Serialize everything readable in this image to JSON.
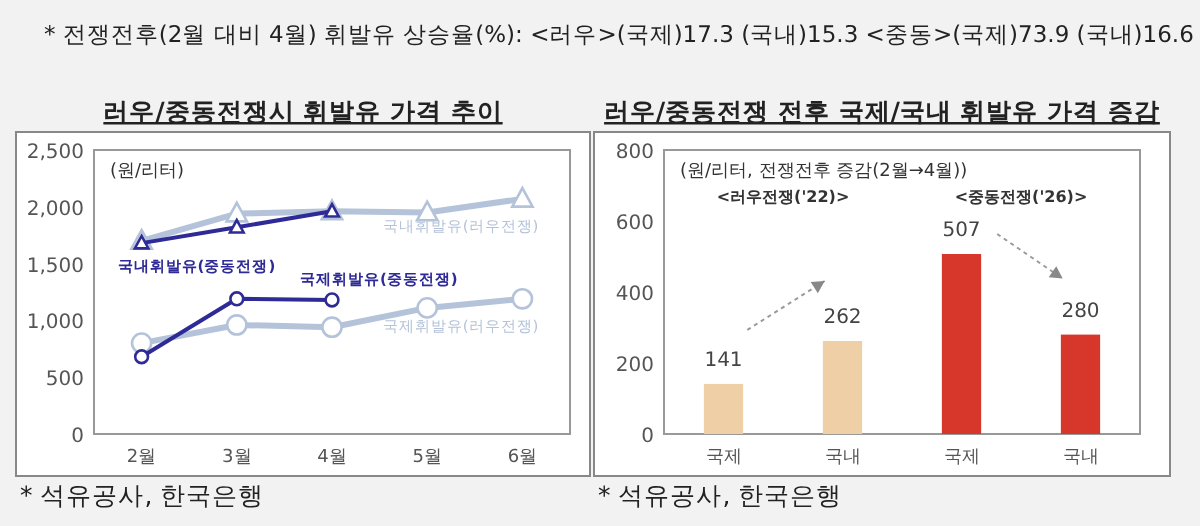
{
  "chart_data": [
    {
      "type": "line",
      "title": "러우/중동전쟁시 휘발유 가격 추이",
      "ylabel": "(원/리터)",
      "categories": [
        "2월",
        "3월",
        "4월",
        "5월",
        "6월"
      ],
      "ylim": [
        0,
        2500
      ],
      "yticks": [
        0,
        500,
        {
          "value": 1000,
          "label": "1,000"
        },
        {
          "value": 1500,
          "label": "1,500"
        },
        {
          "value": 2000,
          "label": "2,000"
        },
        {
          "value": 2500,
          "label": "2,500"
        }
      ],
      "grid": false,
      "line_style": "solid",
      "series": [
        {
          "name": "국내휘발유(러우전쟁)",
          "color": "#b4c3d9",
          "marker": "triangle",
          "values": [
            1700,
            1940,
            1960,
            1950,
            2070
          ]
        },
        {
          "name": "국제휘발유(러우전쟁)",
          "color": "#b4c3d9",
          "marker": "circle",
          "values": [
            800,
            960,
            940,
            1110,
            1190
          ]
        },
        {
          "name": "국내휘발유(중동전쟁)",
          "color": "#2e2a96",
          "marker": "triangle",
          "values": [
            1680,
            1820,
            1960,
            null,
            null
          ]
        },
        {
          "name": "국제휘발유(중동전쟁)",
          "color": "#2e2a96",
          "marker": "circle",
          "values": [
            680,
            1190,
            1180,
            null,
            null
          ]
        }
      ],
      "annotations": [
        "* 전쟁전후(2월 대비 4월) 휘발유 상승율(%): <러우>(국제)17.3 (국내)15.3 <중동>(국제)73.9 (국내)16.6",
        "* 석유공사, 한국은행"
      ]
    },
    {
      "type": "bar",
      "title": "러우/중동전쟁 전후 국제/국내 휘발유 가격 증감",
      "ylabel": "(원/리터, 전쟁전후 증감(2월→4월))",
      "categories": [
        "국제",
        "국내",
        "국제",
        "국내"
      ],
      "values": [
        141,
        262,
        507,
        280
      ],
      "colors": [
        "#efcfa6",
        "#efcfa6",
        "#d7362a",
        "#d7362a"
      ],
      "data_labels": true,
      "ylim": [
        0,
        800
      ],
      "yticks": [
        0,
        200,
        400,
        600,
        800
      ],
      "grid": false,
      "annotations": [
        "<러우전쟁('22)>",
        "<중동전쟁('26)>",
        "* 석유공사, 한국은행"
      ]
    }
  ]
}
